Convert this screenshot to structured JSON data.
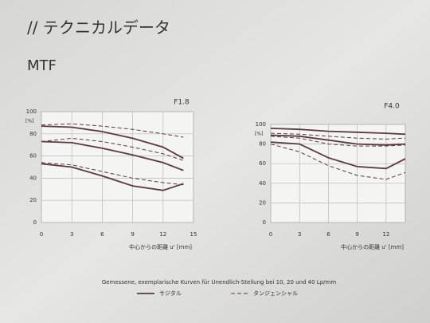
{
  "slide": {
    "title": "// テクニカルデータ",
    "heading": "MTF",
    "caption": "Gemessene, exemplarische Kurven für Unendlich-Stellung bei 10, 20 und 40 Lp/mm"
  },
  "legend": [
    {
      "name": "サジタル",
      "dash": false
    },
    {
      "name": "タンジェンシャル",
      "dash": true
    }
  ],
  "chart_data": [
    {
      "type": "line",
      "title": "F1.8",
      "ylabel": "[%]",
      "xlabel": "中心からの距離 u' [mm]",
      "x": [
        0,
        3,
        6,
        9,
        12,
        14
      ],
      "xlim": [
        0,
        15
      ],
      "xticks": [
        0,
        3,
        6,
        9,
        12,
        15
      ],
      "ylim": [
        0,
        100
      ],
      "yticks": [
        0,
        20,
        40,
        60,
        80,
        100
      ],
      "grid": true,
      "series": [
        {
          "color": "#5a3a3e",
          "dash": false,
          "values": [
            87,
            86,
            82,
            76,
            68,
            58
          ]
        },
        {
          "color": "#5a3a3e",
          "dash": true,
          "values": [
            88,
            89,
            87,
            84,
            80,
            77
          ]
        },
        {
          "color": "#5a3a3e",
          "dash": false,
          "values": [
            73,
            72,
            67,
            61,
            54,
            47
          ]
        },
        {
          "color": "#5a3a3e",
          "dash": true,
          "values": [
            73,
            76,
            73,
            68,
            62,
            56
          ]
        },
        {
          "color": "#5a3a3e",
          "dash": false,
          "values": [
            53,
            50,
            42,
            33,
            29,
            35
          ]
        },
        {
          "color": "#5a3a3e",
          "dash": true,
          "values": [
            54,
            52,
            46,
            40,
            36,
            34
          ]
        }
      ]
    },
    {
      "type": "line",
      "title": "F4.0",
      "ylabel": "[%]",
      "xlabel": "中心からの距離 u' [mm]",
      "x": [
        0,
        3,
        6,
        9,
        12,
        14
      ],
      "xlim": [
        0,
        14
      ],
      "xticks": [
        0,
        3,
        6,
        9,
        12
      ],
      "ylim": [
        0,
        100
      ],
      "yticks": [
        0,
        20,
        40,
        60,
        80,
        100
      ],
      "grid": true,
      "series": [
        {
          "color": "#5a3a3e",
          "dash": false,
          "values": [
            96,
            95,
            93,
            92,
            91,
            90
          ]
        },
        {
          "color": "#5a3a3e",
          "dash": true,
          "values": [
            91,
            90,
            88,
            86,
            85,
            86
          ]
        },
        {
          "color": "#5a3a3e",
          "dash": false,
          "values": [
            89,
            88,
            84,
            80,
            79,
            80
          ]
        },
        {
          "color": "#5a3a3e",
          "dash": true,
          "values": [
            88,
            86,
            80,
            78,
            78,
            79
          ]
        },
        {
          "color": "#5a3a3e",
          "dash": false,
          "values": [
            82,
            80,
            66,
            57,
            55,
            65
          ]
        },
        {
          "color": "#5a3a3e",
          "dash": true,
          "values": [
            80,
            72,
            58,
            48,
            44,
            51
          ]
        }
      ]
    }
  ]
}
